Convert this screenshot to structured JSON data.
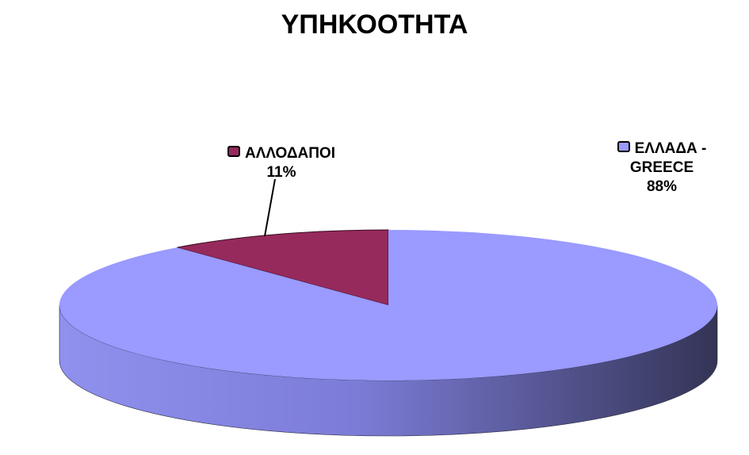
{
  "chart_data": {
    "type": "pie",
    "title": "ΥΠΗΚΟΟΤΗΤΑ",
    "categories": [
      "ΑΛΛΟΔΑΠΟΙ",
      "ΕΛΛΑΔΑ - GREECE"
    ],
    "values": [
      11,
      88
    ],
    "value_labels": [
      "11%",
      "88%"
    ],
    "colors": [
      "#962a5c",
      "#9a9aff"
    ]
  }
}
